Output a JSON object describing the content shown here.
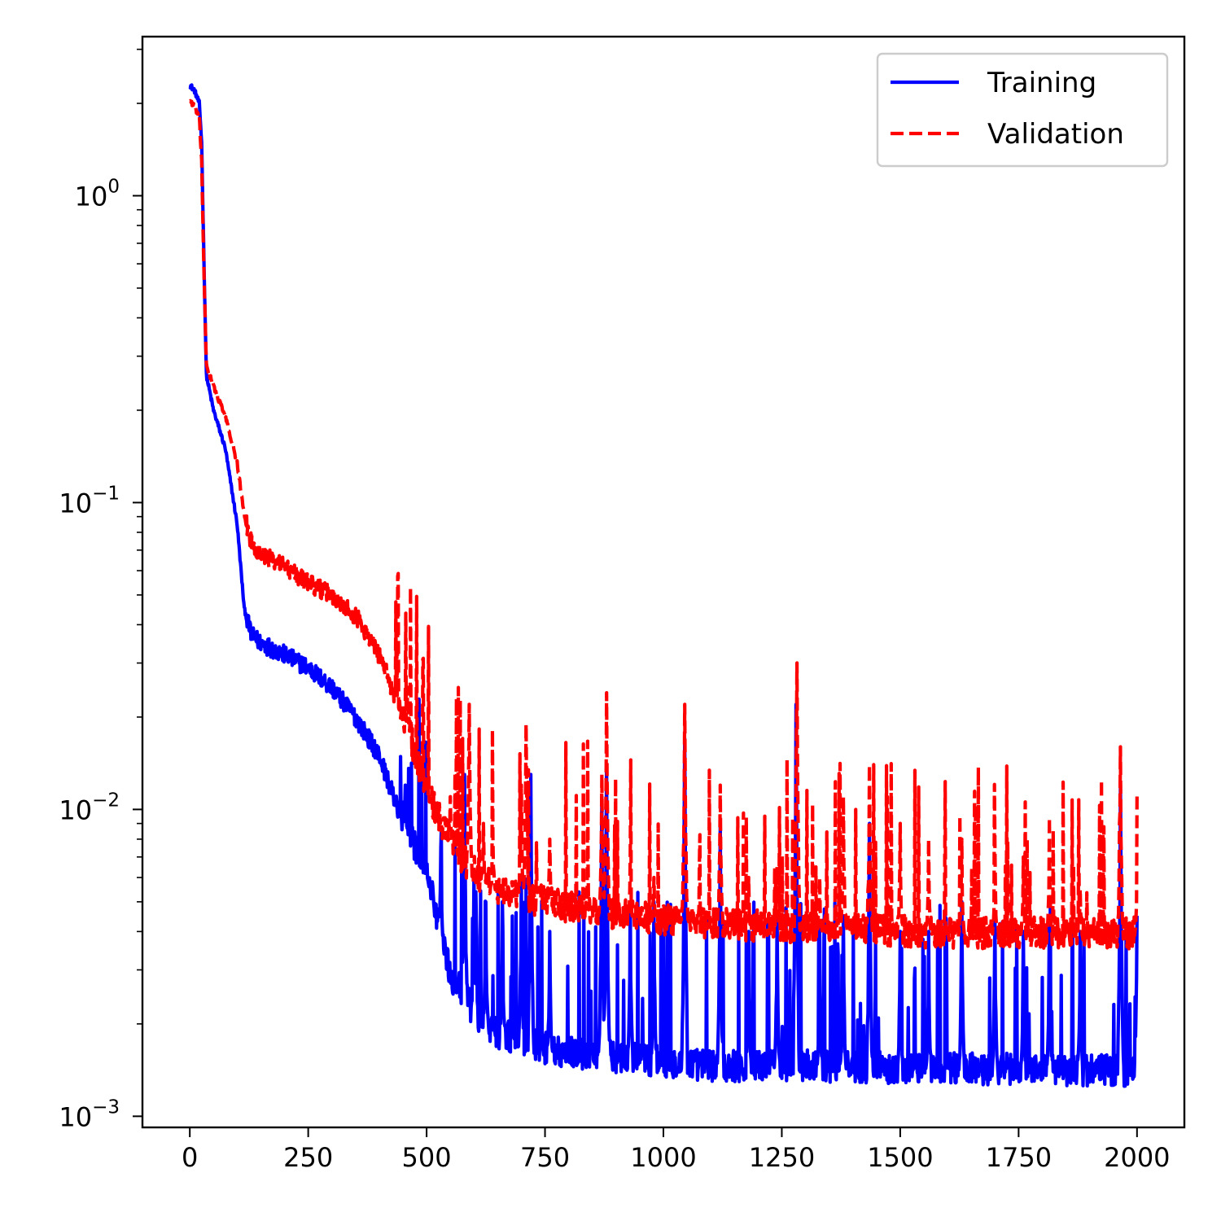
{
  "chart_data": {
    "type": "line",
    "title": "",
    "xlabel": "",
    "ylabel": "",
    "xscale": "linear",
    "yscale": "log",
    "xlim": [
      -100,
      2100
    ],
    "ylim": [
      0.00092,
      3.3
    ],
    "grid": false,
    "legend": {
      "position": "top-right"
    },
    "x_ticks": [
      0,
      250,
      500,
      750,
      1000,
      1250,
      1500,
      1750,
      2000
    ],
    "x_tick_labels": [
      "0",
      "250",
      "500",
      "750",
      "1000",
      "1250",
      "1500",
      "1750",
      "2000"
    ],
    "y_ticks": [
      {
        "value": 0.001,
        "base": "10",
        "exp": "−3"
      },
      {
        "value": 0.01,
        "base": "10",
        "exp": "−2"
      },
      {
        "value": 0.1,
        "base": "10",
        "exp": "−1"
      },
      {
        "value": 1,
        "base": "10",
        "exp": "0"
      }
    ],
    "series": [
      {
        "name": "Training",
        "color": "#0000ff",
        "dash": "solid",
        "epochs": 2000,
        "trend": [
          [
            0,
            2.3
          ],
          [
            10,
            2.2
          ],
          [
            20,
            2.0
          ],
          [
            25,
            1.5
          ],
          [
            30,
            0.6
          ],
          [
            35,
            0.26
          ],
          [
            50,
            0.2
          ],
          [
            75,
            0.15
          ],
          [
            100,
            0.085
          ],
          [
            115,
            0.045
          ],
          [
            130,
            0.037
          ],
          [
            150,
            0.035
          ],
          [
            200,
            0.032
          ],
          [
            250,
            0.029
          ],
          [
            300,
            0.025
          ],
          [
            350,
            0.02
          ],
          [
            400,
            0.015
          ],
          [
            450,
            0.009
          ],
          [
            500,
            0.006
          ],
          [
            550,
            0.0028
          ],
          [
            600,
            0.0021
          ],
          [
            650,
            0.0018
          ],
          [
            700,
            0.0017
          ],
          [
            750,
            0.0016
          ],
          [
            800,
            0.00155
          ],
          [
            900,
            0.0015
          ],
          [
            1000,
            0.00145
          ],
          [
            1100,
            0.0014
          ],
          [
            1300,
            0.0014
          ],
          [
            1500,
            0.00138
          ],
          [
            2000,
            0.00135
          ]
        ],
        "spikes": [
          [
            455,
            0.012
          ],
          [
            500,
            0.0065
          ],
          [
            530,
            0.0075
          ],
          [
            580,
            0.013
          ],
          [
            600,
            0.006
          ],
          [
            625,
            0.005
          ],
          [
            660,
            0.005
          ],
          [
            700,
            0.006
          ],
          [
            720,
            0.013
          ],
          [
            760,
            0.004
          ],
          [
            870,
            0.011
          ],
          [
            880,
            0.014
          ],
          [
            930,
            0.005
          ],
          [
            980,
            0.005
          ],
          [
            1045,
            0.017
          ],
          [
            1120,
            0.009
          ],
          [
            1180,
            0.004
          ],
          [
            1240,
            0.0045
          ],
          [
            1280,
            0.022
          ],
          [
            1330,
            0.004
          ],
          [
            1380,
            0.0045
          ],
          [
            1435,
            0.009
          ],
          [
            1500,
            0.004
          ],
          [
            1560,
            0.004
          ],
          [
            1630,
            0.005
          ],
          [
            1700,
            0.0045
          ],
          [
            1760,
            0.004
          ],
          [
            1815,
            0.0045
          ],
          [
            1880,
            0.004
          ],
          [
            1965,
            0.012
          ],
          [
            2000,
            0.0045
          ]
        ]
      },
      {
        "name": "Validation",
        "color": "#ff0000",
        "dash": "dashed",
        "epochs": 2000,
        "trend": [
          [
            0,
            2.05
          ],
          [
            10,
            1.95
          ],
          [
            20,
            1.8
          ],
          [
            25,
            1.3
          ],
          [
            30,
            0.55
          ],
          [
            35,
            0.28
          ],
          [
            50,
            0.24
          ],
          [
            75,
            0.19
          ],
          [
            100,
            0.135
          ],
          [
            115,
            0.09
          ],
          [
            130,
            0.075
          ],
          [
            150,
            0.068
          ],
          [
            200,
            0.062
          ],
          [
            250,
            0.055
          ],
          [
            300,
            0.05
          ],
          [
            350,
            0.043
          ],
          [
            400,
            0.032
          ],
          [
            450,
            0.02
          ],
          [
            500,
            0.011
          ],
          [
            550,
            0.0075
          ],
          [
            600,
            0.006
          ],
          [
            650,
            0.0053
          ],
          [
            700,
            0.005
          ],
          [
            750,
            0.0048
          ],
          [
            800,
            0.0046
          ],
          [
            900,
            0.0044
          ],
          [
            1000,
            0.0042
          ],
          [
            1200,
            0.004
          ],
          [
            1400,
            0.0039
          ],
          [
            1600,
            0.0038
          ],
          [
            2000,
            0.0038
          ]
        ],
        "spikes": [
          [
            460,
            0.025
          ],
          [
            500,
            0.013
          ],
          [
            550,
            0.011
          ],
          [
            590,
            0.022
          ],
          [
            620,
            0.009
          ],
          [
            640,
            0.008
          ],
          [
            700,
            0.012
          ],
          [
            710,
            0.019
          ],
          [
            760,
            0.008
          ],
          [
            870,
            0.013
          ],
          [
            880,
            0.024
          ],
          [
            930,
            0.007
          ],
          [
            980,
            0.006
          ],
          [
            1045,
            0.022
          ],
          [
            1120,
            0.012
          ],
          [
            1180,
            0.006
          ],
          [
            1240,
            0.0065
          ],
          [
            1282,
            0.03
          ],
          [
            1330,
            0.006
          ],
          [
            1380,
            0.011
          ],
          [
            1435,
            0.014
          ],
          [
            1500,
            0.009
          ],
          [
            1560,
            0.008
          ],
          [
            1630,
            0.008
          ],
          [
            1700,
            0.0075
          ],
          [
            1760,
            0.007
          ],
          [
            1815,
            0.008
          ],
          [
            1880,
            0.0055
          ],
          [
            1965,
            0.016
          ],
          [
            2000,
            0.0065
          ]
        ]
      }
    ]
  }
}
